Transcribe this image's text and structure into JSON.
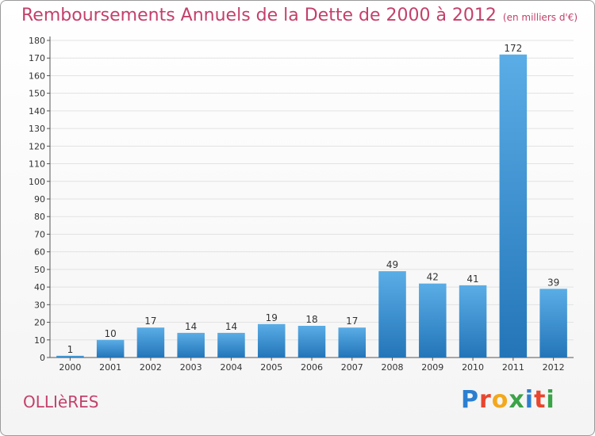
{
  "header": {
    "title": "Remboursements Annuels de la Dette de 2000 à 2012",
    "subtitle": "(en milliers d'€)"
  },
  "footer": {
    "commune": "OLLIèRES",
    "brand": "Proxiti"
  },
  "colors": {
    "title": "#c4406a",
    "bar_top": "#5aade6",
    "bar_bottom": "#2375b8",
    "grid": "#e2e2e2"
  },
  "chart_data": {
    "type": "bar",
    "categories": [
      "2000",
      "2001",
      "2002",
      "2003",
      "2004",
      "2005",
      "2006",
      "2007",
      "2008",
      "2009",
      "2010",
      "2011",
      "2012"
    ],
    "values": [
      1,
      10,
      17,
      14,
      14,
      19,
      18,
      17,
      49,
      42,
      41,
      172,
      39
    ],
    "title": "Remboursements Annuels de la Dette de 2000 à 2012",
    "xlabel": "",
    "ylabel": "",
    "ylim": [
      0,
      180
    ],
    "ytick_step": 10,
    "grid": true,
    "legend": "none"
  }
}
